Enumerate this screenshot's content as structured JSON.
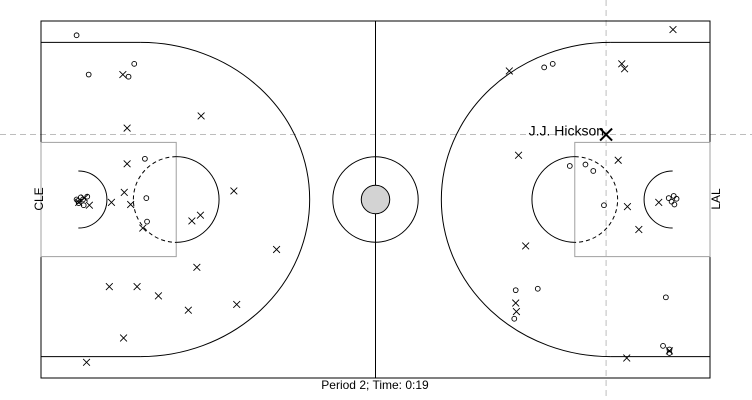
{
  "chart_data": {
    "type": "scatter",
    "caption": "Period 2; Time: 0:19",
    "left_team": "CLE",
    "right_team": "LAL",
    "highlight": {
      "label": "J.J. Hickson",
      "x": 79.4,
      "y": 34.1,
      "symbol": "x"
    },
    "xlim": [
      0,
      94
    ],
    "ylim": [
      0,
      50
    ],
    "series": [
      {
        "symbol": "o",
        "points": [
          [
            5.0,
            48.0
          ],
          [
            6.7,
            42.5
          ],
          [
            12.3,
            42.2
          ],
          [
            13.1,
            44.0
          ],
          [
            14.6,
            30.7
          ],
          [
            14.8,
            25.2
          ],
          [
            14.9,
            21.9
          ],
          [
            5.2,
            24.8
          ],
          [
            5.6,
            25.3
          ],
          [
            5.9,
            25.0
          ],
          [
            5.3,
            24.5
          ],
          [
            6.5,
            25.4
          ],
          [
            6.0,
            24.2
          ],
          [
            5.0,
            25.0
          ],
          [
            66.5,
            8.3
          ],
          [
            66.7,
            12.3
          ],
          [
            69.8,
            12.5
          ],
          [
            70.7,
            43.5
          ],
          [
            71.9,
            44.0
          ],
          [
            74.3,
            29.7
          ],
          [
            76.5,
            29.9
          ],
          [
            77.6,
            29.0
          ],
          [
            79.1,
            24.2
          ],
          [
            88.9,
            25.5
          ],
          [
            88.6,
            24.7
          ],
          [
            89.0,
            24.3
          ],
          [
            88.2,
            25.2
          ],
          [
            89.3,
            25.1
          ],
          [
            87.8,
            11.3
          ],
          [
            87.4,
            4.5
          ],
          [
            88.3,
            4.0
          ],
          [
            88.3,
            3.5
          ]
        ]
      },
      {
        "symbol": "x",
        "points": [
          [
            6.4,
            2.2
          ],
          [
            5.3,
            24.6
          ],
          [
            6.1,
            25.2
          ],
          [
            6.8,
            24.2
          ],
          [
            9.6,
            12.8
          ],
          [
            9.9,
            24.6
          ],
          [
            11.6,
            5.6
          ],
          [
            11.5,
            42.5
          ],
          [
            12.1,
            35.0
          ],
          [
            12.1,
            30.0
          ],
          [
            11.7,
            26.0
          ],
          [
            12.6,
            24.3
          ],
          [
            14.3,
            21.0
          ],
          [
            13.5,
            12.8
          ],
          [
            16.5,
            11.5
          ],
          [
            20.7,
            9.5
          ],
          [
            21.2,
            22.0
          ],
          [
            21.9,
            15.5
          ],
          [
            22.4,
            22.8
          ],
          [
            22.5,
            36.7
          ],
          [
            27.5,
            10.3
          ],
          [
            27.1,
            26.2
          ],
          [
            33.1,
            18.0
          ],
          [
            65.8,
            43.0
          ],
          [
            66.7,
            10.5
          ],
          [
            66.8,
            9.3
          ],
          [
            67.1,
            31.2
          ],
          [
            68.1,
            18.5
          ],
          [
            81.1,
            30.5
          ],
          [
            81.6,
            44.0
          ],
          [
            82.0,
            43.3
          ],
          [
            82.3,
            2.8
          ],
          [
            82.4,
            24.0
          ],
          [
            84.0,
            20.8
          ],
          [
            86.8,
            24.6
          ],
          [
            88.8,
            48.8
          ],
          [
            88.3,
            3.8
          ]
        ]
      }
    ]
  }
}
